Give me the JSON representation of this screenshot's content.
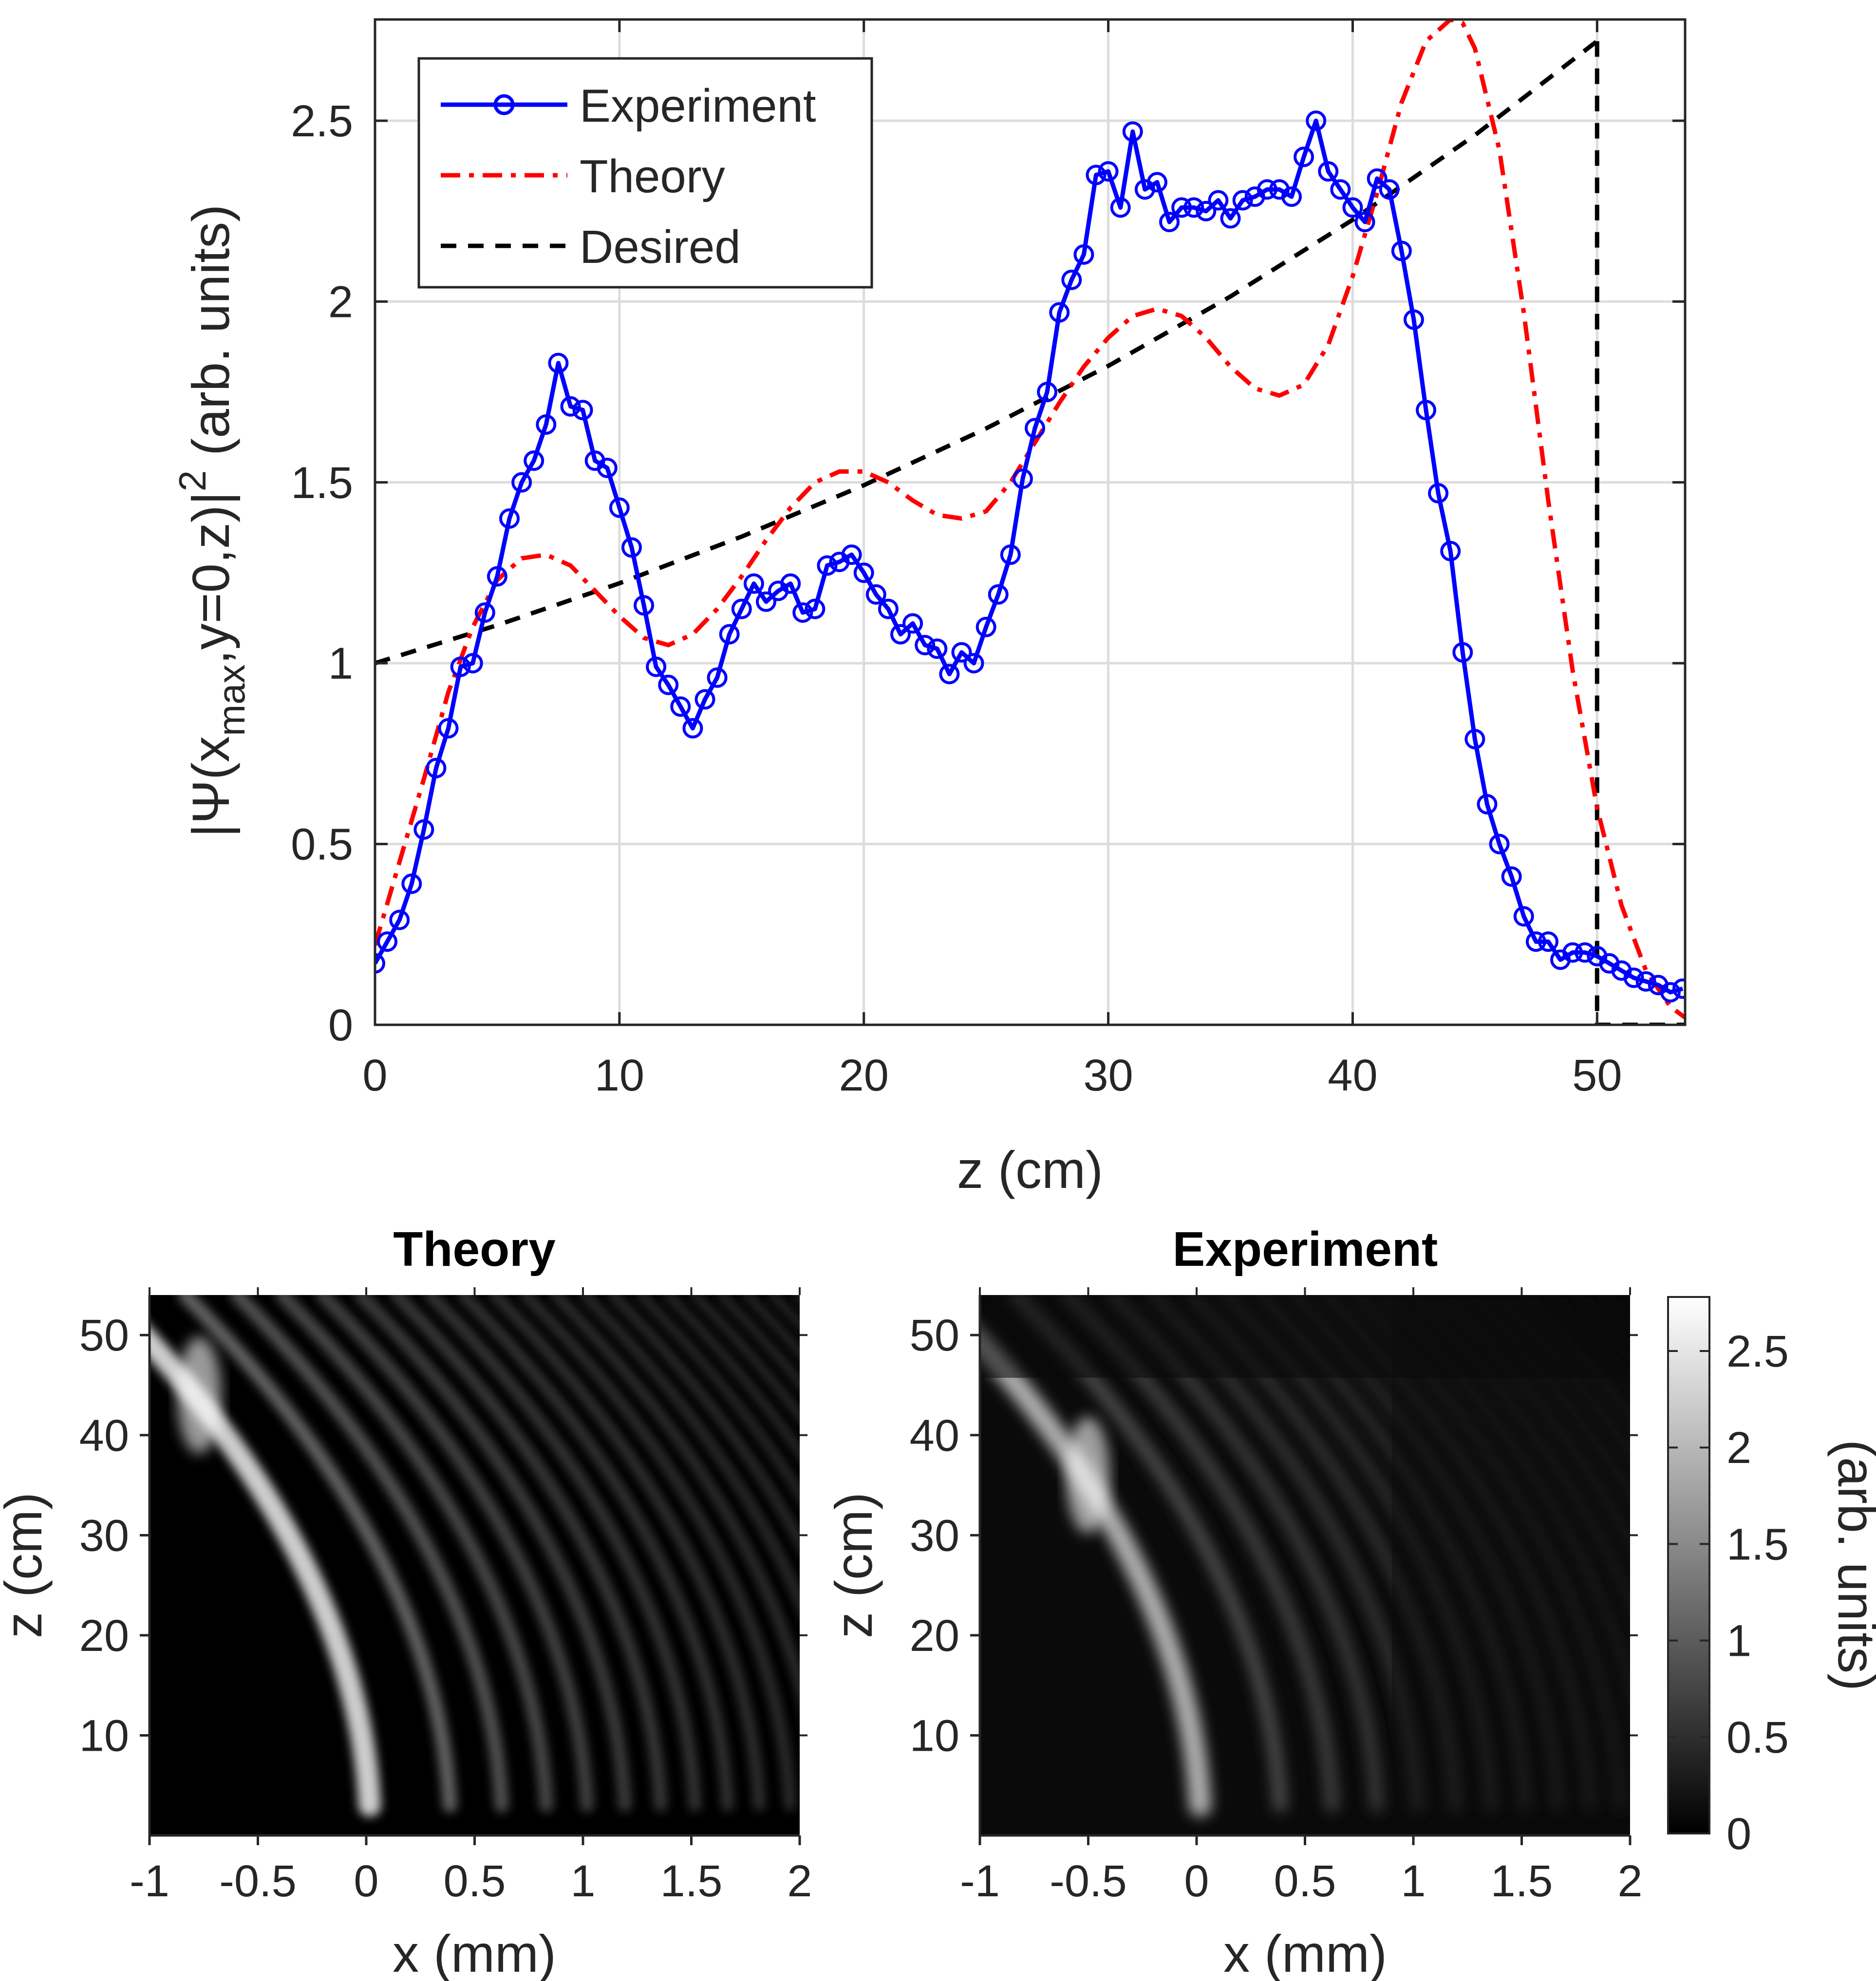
{
  "chart_data": [
    {
      "type": "line",
      "xlabel": "z (cm)",
      "ylabel": "|Ψ(x_max,y=0,z)|² (arb. units)",
      "ylabel_parts": {
        "a": "|Ψ(x",
        "sub": "max",
        "b": ",y=0,z)|",
        "sup": "2",
        "c": " (arb. units)"
      },
      "xlim": [
        0,
        53.6
      ],
      "ylim": [
        0,
        2.78
      ],
      "xticks": [
        0,
        10,
        20,
        30,
        40,
        50
      ],
      "yticks": [
        0,
        0.5,
        1,
        1.5,
        2,
        2.5
      ],
      "xtick_labels": [
        "0",
        "10",
        "20",
        "30",
        "40",
        "50"
      ],
      "ytick_labels": [
        "0",
        "0.5",
        "1",
        "1.5",
        "2",
        "2.5"
      ],
      "grid": true,
      "legend_position": "top-left",
      "series": [
        {
          "name": "Experiment",
          "color": "#0000ff",
          "style": "solid-circles",
          "x": [
            0,
            0.5,
            1,
            1.5,
            2,
            2.5,
            3,
            3.5,
            4,
            4.5,
            5,
            5.5,
            6,
            6.5,
            7,
            7.5,
            8,
            8.5,
            9,
            9.5,
            10,
            10.5,
            11,
            11.5,
            12,
            12.5,
            13,
            13.5,
            14,
            14.5,
            15,
            15.5,
            16,
            16.5,
            17,
            17.5,
            18,
            18.5,
            19,
            19.5,
            20,
            20.5,
            21,
            21.5,
            22,
            22.5,
            23,
            23.5,
            24,
            24.5,
            25,
            25.5,
            26,
            26.5,
            27,
            27.5,
            28,
            28.5,
            29,
            29.5,
            30,
            30.5,
            31,
            31.5,
            32,
            32.5,
            33,
            33.5,
            34,
            34.5,
            35,
            35.5,
            36,
            36.5,
            37,
            37.5,
            38,
            38.5,
            39,
            39.5,
            40,
            40.5,
            41,
            41.5,
            42,
            42.5,
            43,
            43.5,
            44,
            44.5,
            45,
            45.5,
            46,
            46.5,
            47,
            47.5,
            48,
            48.5,
            49,
            49.5,
            50,
            50.5,
            51,
            51.5,
            52,
            52.5,
            53,
            53.5
          ],
          "y": [
            0.17,
            0.23,
            0.29,
            0.39,
            0.54,
            0.71,
            0.82,
            0.99,
            1.0,
            1.14,
            1.24,
            1.4,
            1.5,
            1.56,
            1.66,
            1.83,
            1.71,
            1.7,
            1.56,
            1.54,
            1.43,
            1.32,
            1.16,
            0.99,
            0.94,
            0.88,
            0.82,
            0.9,
            0.96,
            1.08,
            1.15,
            1.22,
            1.17,
            1.2,
            1.22,
            1.14,
            1.15,
            1.27,
            1.28,
            1.3,
            1.25,
            1.19,
            1.15,
            1.08,
            1.11,
            1.05,
            1.04,
            0.97,
            1.03,
            1.0,
            1.1,
            1.19,
            1.3,
            1.51,
            1.65,
            1.75,
            1.97,
            2.06,
            2.13,
            2.35,
            2.36,
            2.26,
            2.47,
            2.31,
            2.33,
            2.22,
            2.26,
            2.26,
            2.25,
            2.28,
            2.23,
            2.28,
            2.29,
            2.31,
            2.31,
            2.29,
            2.4,
            2.5,
            2.36,
            2.31,
            2.26,
            2.22,
            2.34,
            2.31,
            2.14,
            1.95,
            1.7,
            1.47,
            1.31,
            1.03,
            0.79,
            0.61,
            0.5,
            0.41,
            0.3,
            0.23,
            0.23,
            0.18,
            0.2,
            0.2,
            0.19,
            0.17,
            0.15,
            0.13,
            0.12,
            0.11,
            0.09,
            0.1
          ]
        },
        {
          "name": "Theory",
          "color": "#ff0000",
          "style": "dash-dot",
          "x": [
            0,
            1,
            2,
            3,
            4,
            5,
            6,
            7,
            8,
            9,
            10,
            11,
            12,
            13,
            14,
            15,
            16,
            17,
            18,
            19,
            20,
            21,
            22,
            23,
            24,
            25,
            26,
            27,
            28,
            29,
            30,
            31,
            32,
            33,
            34,
            35,
            36,
            37,
            38,
            39,
            40,
            41,
            42,
            43,
            44,
            44.5,
            45,
            46,
            47,
            48,
            49,
            50,
            51,
            52,
            53,
            53.6
          ],
          "y": [
            0.22,
            0.45,
            0.68,
            0.92,
            1.1,
            1.23,
            1.29,
            1.3,
            1.27,
            1.2,
            1.13,
            1.07,
            1.05,
            1.08,
            1.15,
            1.24,
            1.34,
            1.43,
            1.5,
            1.53,
            1.53,
            1.5,
            1.45,
            1.41,
            1.4,
            1.42,
            1.5,
            1.61,
            1.72,
            1.82,
            1.9,
            1.96,
            1.98,
            1.96,
            1.9,
            1.82,
            1.76,
            1.74,
            1.77,
            1.88,
            2.07,
            2.3,
            2.55,
            2.72,
            2.78,
            2.77,
            2.7,
            2.42,
            1.97,
            1.45,
            0.98,
            0.6,
            0.33,
            0.15,
            0.05,
            0.02
          ]
        },
        {
          "name": "Desired",
          "color": "#000000",
          "style": "dashed",
          "x": [
            0,
            5,
            10,
            15,
            20,
            25,
            30,
            35,
            40,
            45,
            50
          ],
          "y": [
            1.0,
            1.105,
            1.221,
            1.35,
            1.492,
            1.649,
            1.822,
            2.014,
            2.226,
            2.46,
            2.72
          ]
        },
        {
          "name": "",
          "color": "#000000",
          "style": "dashed",
          "x": [
            50,
            50,
            53.6
          ],
          "y": [
            2.72,
            0,
            0
          ]
        }
      ]
    },
    {
      "type": "heatmap",
      "title": "Theory",
      "xlabel": "x (mm)",
      "ylabel": "z (cm)",
      "xlim": [
        -1,
        2
      ],
      "ylim": [
        0,
        54
      ],
      "xticks": [
        -1,
        -0.5,
        0,
        0.5,
        1,
        1.5,
        2
      ],
      "xtick_labels": [
        "-1",
        "-0.5",
        "0",
        "0.5",
        "1",
        "1.5",
        "2"
      ],
      "yticks": [
        10,
        20,
        30,
        40,
        50
      ],
      "ytick_labels": [
        "10",
        "20",
        "30",
        "40",
        "50"
      ],
      "colormap": "gray"
    },
    {
      "type": "heatmap",
      "title": "Experiment",
      "xlabel": "x (mm)",
      "ylabel": "z (cm)",
      "xlim": [
        -1,
        2
      ],
      "ylim": [
        0,
        54
      ],
      "xticks": [
        -1,
        -0.5,
        0,
        0.5,
        1,
        1.5,
        2
      ],
      "xtick_labels": [
        "-1",
        "-0.5",
        "0",
        "0.5",
        "1",
        "1.5",
        "2"
      ],
      "yticks": [
        10,
        20,
        30,
        40,
        50
      ],
      "ytick_labels": [
        "10",
        "20",
        "30",
        "40",
        "50"
      ],
      "colormap": "gray",
      "colorbar": {
        "label": "(arb. units)",
        "range": [
          0,
          2.78
        ],
        "ticks": [
          0,
          0.5,
          1,
          1.5,
          2,
          2.5
        ],
        "tick_labels": [
          "0",
          "0.5",
          "1",
          "1.5",
          "2",
          "2.5"
        ]
      }
    }
  ]
}
